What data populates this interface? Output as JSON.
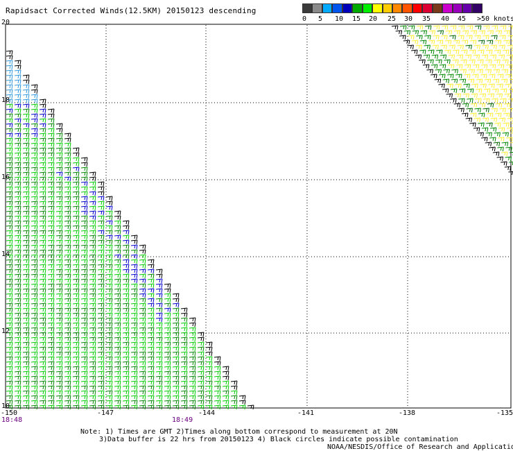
{
  "title": "Rapidsact Corrected Winds(12.5KM) 20150123 descending",
  "legend": {
    "labels": [
      "0",
      "5",
      "10",
      "15",
      "20",
      "25",
      "30",
      "35",
      "40",
      "45",
      ">50",
      "knots"
    ],
    "colors": [
      "#3a3a3a",
      "#8a8a8a",
      "#00aaff",
      "#0055ee",
      "#0000bb",
      "#00aa00",
      "#00ee00",
      "#ffff00",
      "#ffcc00",
      "#ff8800",
      "#ff5500",
      "#ff0000",
      "#dd0033",
      "#7a3a1a",
      "#cc00cc",
      "#9900bb",
      "#6600aa",
      "#330066"
    ]
  },
  "axes": {
    "lat_labels": [
      "20",
      "18",
      "16",
      "14",
      "12",
      "10"
    ],
    "lon_labels": [
      "-150",
      "-147",
      "-144",
      "-141",
      "-138",
      "-135"
    ]
  },
  "times": {
    "left": "18:48",
    "mid": "18:49"
  },
  "notes": {
    "line1": "Note: 1) Times are GMT 2)Times along bottom correspond to measurement at 20N",
    "line2": "3)Data buffer is 22 hrs from 20150123 4) Black circles indicate possible contamination",
    "line3": "NOAA/NESDIS/Office of Research and Applications"
  }
}
